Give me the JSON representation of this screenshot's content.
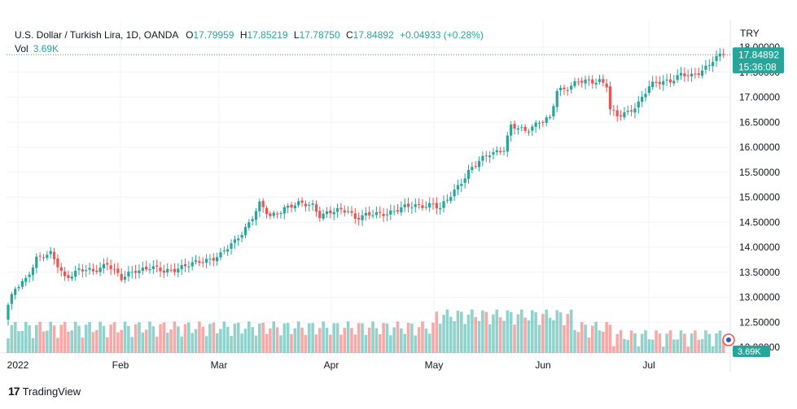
{
  "legend": {
    "symbol": "U.S. Dollar / Turkish Lira, 1D, OANDA",
    "open_label": "O",
    "open": "17.79959",
    "high_label": "H",
    "high": "17.85219",
    "low_label": "L",
    "low": "17.78750",
    "close_label": "C",
    "close": "17.84892",
    "change": "+0.04933 (+0.28%)"
  },
  "volume": {
    "label": "Vol",
    "value": "3.69K"
  },
  "currency": "TRY",
  "last_price": {
    "price": "17.84892",
    "countdown": "15:36:08"
  },
  "volume_tag": "3.69K",
  "branding": {
    "name": "TradingView"
  },
  "colors": {
    "up": "#26a69a",
    "down": "#ef5350",
    "vol_up": "#26a69a80",
    "vol_down": "#ef535080"
  },
  "chart_data": {
    "type": "candlestick",
    "y_ticks": [
      "18.00000",
      "17.50000",
      "17.00000",
      "16.50000",
      "16.00000",
      "15.50000",
      "15.00000",
      "14.50000",
      "14.00000",
      "13.50000",
      "13.00000",
      "12.50000",
      "12.00000"
    ],
    "x_ticks": [
      "2022",
      "Feb",
      "Mar",
      "Apr",
      "May",
      "Jun",
      "Jul"
    ],
    "price_range": [
      12.0,
      18.0
    ],
    "anchors": [
      {
        "i": 0,
        "c": 12.85
      },
      {
        "i": 2,
        "c": 13.15
      },
      {
        "i": 5,
        "c": 13.35
      },
      {
        "i": 8,
        "c": 13.8
      },
      {
        "i": 12,
        "c": 13.85
      },
      {
        "i": 16,
        "c": 13.4
      },
      {
        "i": 20,
        "c": 13.55
      },
      {
        "i": 24,
        "c": 13.5
      },
      {
        "i": 28,
        "c": 13.7
      },
      {
        "i": 32,
        "c": 13.35
      },
      {
        "i": 36,
        "c": 13.55
      },
      {
        "i": 40,
        "c": 13.6
      },
      {
        "i": 44,
        "c": 13.5
      },
      {
        "i": 48,
        "c": 13.6
      },
      {
        "i": 52,
        "c": 13.65
      },
      {
        "i": 56,
        "c": 13.75
      },
      {
        "i": 60,
        "c": 13.85
      },
      {
        "i": 64,
        "c": 14.1
      },
      {
        "i": 68,
        "c": 14.5
      },
      {
        "i": 71,
        "c": 14.85
      },
      {
        "i": 74,
        "c": 14.6
      },
      {
        "i": 78,
        "c": 14.8
      },
      {
        "i": 82,
        "c": 14.85
      },
      {
        "i": 86,
        "c": 14.85
      },
      {
        "i": 88,
        "c": 14.65
      },
      {
        "i": 92,
        "c": 14.7
      },
      {
        "i": 96,
        "c": 14.75
      },
      {
        "i": 98,
        "c": 14.6
      },
      {
        "i": 104,
        "c": 14.65
      },
      {
        "i": 110,
        "c": 14.75
      },
      {
        "i": 116,
        "c": 14.85
      },
      {
        "i": 120,
        "c": 14.85
      },
      {
        "i": 122,
        "c": 14.75
      },
      {
        "i": 126,
        "c": 15.15
      },
      {
        "i": 130,
        "c": 15.5
      },
      {
        "i": 133,
        "c": 15.7
      },
      {
        "i": 136,
        "c": 15.9
      },
      {
        "i": 140,
        "c": 15.95
      },
      {
        "i": 142,
        "c": 16.4
      },
      {
        "i": 146,
        "c": 16.35
      },
      {
        "i": 150,
        "c": 16.5
      },
      {
        "i": 153,
        "c": 16.55
      },
      {
        "i": 155,
        "c": 17.15
      },
      {
        "i": 158,
        "c": 17.2
      },
      {
        "i": 161,
        "c": 17.3
      },
      {
        "i": 164,
        "c": 17.3
      },
      {
        "i": 167,
        "c": 17.35
      },
      {
        "i": 169,
        "c": 17.25
      },
      {
        "i": 170,
        "c": 16.75
      },
      {
        "i": 172,
        "c": 16.6
      },
      {
        "i": 175,
        "c": 16.7
      },
      {
        "i": 178,
        "c": 16.9
      },
      {
        "i": 181,
        "c": 17.2
      },
      {
        "i": 184,
        "c": 17.3
      },
      {
        "i": 187,
        "c": 17.35
      },
      {
        "i": 190,
        "c": 17.45
      },
      {
        "i": 193,
        "c": 17.4
      },
      {
        "i": 196,
        "c": 17.55
      },
      {
        "i": 199,
        "c": 17.75
      },
      {
        "i": 202,
        "c": 17.85
      }
    ],
    "volume_range": [
      0,
      3500
    ]
  }
}
